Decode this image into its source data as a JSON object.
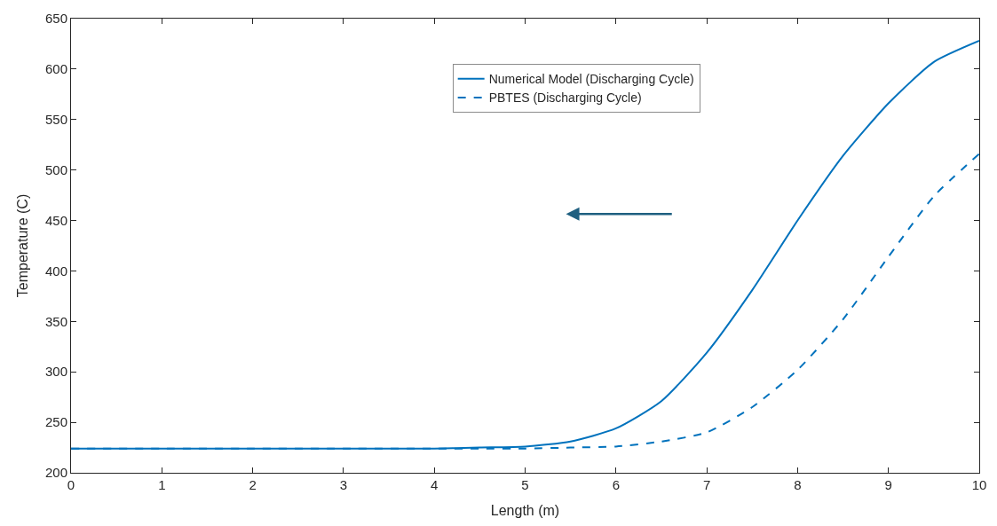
{
  "chart_data": {
    "type": "line",
    "xlabel": "Length (m)",
    "ylabel": "Temperature (C)",
    "xlim": [
      0,
      10
    ],
    "xticks": [
      0,
      1,
      2,
      3,
      4,
      5,
      6,
      7,
      8,
      9,
      10
    ],
    "ylim": [
      200,
      650
    ],
    "yticks": [
      200,
      250,
      300,
      350,
      400,
      450,
      500,
      550,
      600,
      650
    ],
    "legend": "top",
    "marker": "none",
    "series": [
      {
        "name": "Numerical Model (Discharging Cycle)",
        "color": "#0072bd",
        "line_style": "solid",
        "x": [
          0,
          1,
          2,
          3,
          4,
          4.5,
          5,
          5.5,
          6,
          6.5,
          7,
          7.5,
          8,
          8.5,
          9,
          9.5,
          10
        ],
        "values": [
          224,
          224,
          224,
          224,
          224,
          225,
          226,
          231,
          244,
          271,
          319,
          381,
          450,
          514,
          566,
          607,
          628
        ]
      },
      {
        "name": "PBTES (Discharging Cycle)",
        "color": "#0072bd",
        "line_style": "dashed",
        "x": [
          0,
          1,
          2,
          3,
          4,
          4.5,
          5,
          5.5,
          6,
          6.5,
          7,
          7.5,
          8,
          8.5,
          9,
          9.5,
          10
        ],
        "values": [
          224,
          224,
          224,
          224,
          224,
          224,
          224,
          225,
          226,
          231,
          240,
          265,
          302,
          352,
          414,
          474,
          516
        ]
      }
    ]
  }
}
